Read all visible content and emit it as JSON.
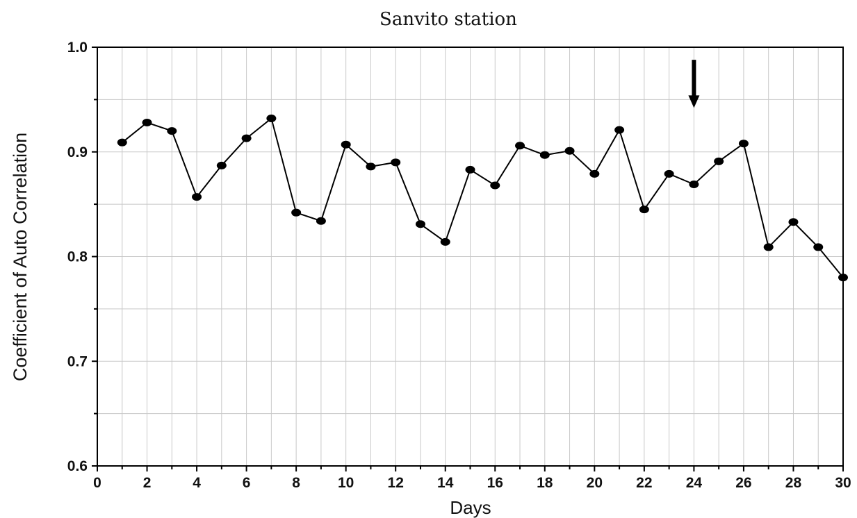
{
  "chart_data": {
    "type": "line",
    "title": "Sanvito station",
    "xlabel": "Days",
    "ylabel": "Coefficient of Auto Correlation",
    "xlim": [
      0,
      30
    ],
    "ylim": [
      0.6,
      1.0
    ],
    "xticks": [
      0,
      2,
      4,
      6,
      8,
      10,
      12,
      14,
      16,
      18,
      20,
      22,
      24,
      26,
      28,
      30
    ],
    "yticks": [
      0.6,
      0.7,
      0.8,
      0.9,
      1.0
    ],
    "xtick_labels": [
      "0",
      "2",
      "4",
      "6",
      "8",
      "10",
      "12",
      "14",
      "16",
      "18",
      "20",
      "22",
      "24",
      "26",
      "28",
      "30"
    ],
    "ytick_labels": [
      "0.6",
      "0.7",
      "0.8",
      "0.9",
      "1.0"
    ],
    "grid": true,
    "series": [
      {
        "x": [
          1,
          2,
          3,
          4,
          5,
          6,
          7,
          8,
          9,
          10,
          11,
          12,
          13,
          14,
          15,
          16,
          17,
          18,
          19,
          20,
          21,
          22,
          23,
          24,
          25,
          26,
          27,
          28,
          29,
          30
        ],
        "values": [
          0.909,
          0.928,
          0.92,
          0.857,
          0.887,
          0.913,
          0.932,
          0.842,
          0.834,
          0.907,
          0.886,
          0.89,
          0.831,
          0.814,
          0.883,
          0.868,
          0.906,
          0.897,
          0.901,
          0.879,
          0.921,
          0.845,
          0.879,
          0.869,
          0.891,
          0.908,
          0.809,
          0.833,
          0.809,
          0.78
        ]
      }
    ],
    "annotations": [
      {
        "type": "arrow",
        "x": 24,
        "y_from": 0.988,
        "y_to": 0.942,
        "direction": "down"
      }
    ]
  }
}
